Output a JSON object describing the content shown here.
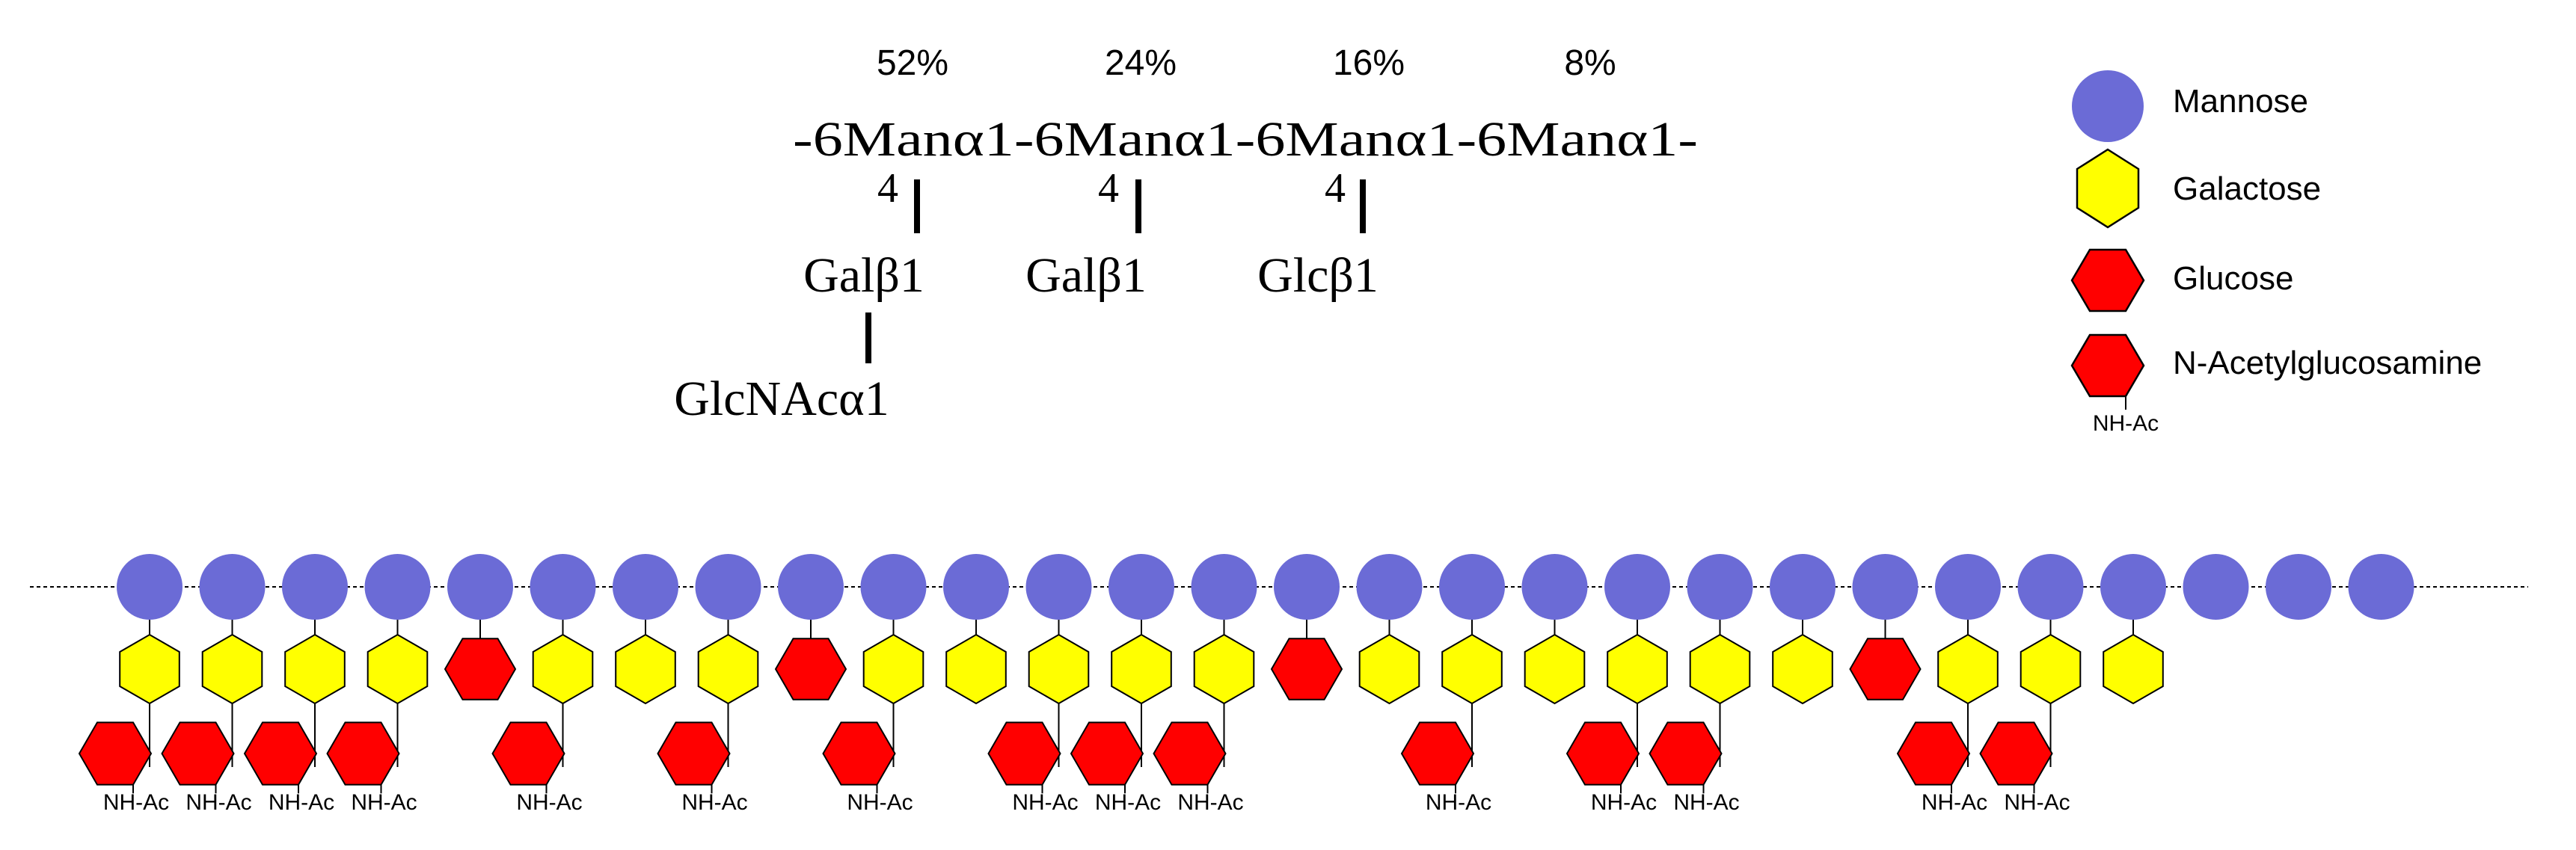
{
  "formula": {
    "percents": [
      "52%",
      "24%",
      "16%",
      "8%"
    ],
    "backbone": "-6Manα1-6Manα1-6Manα1-6Manα1-",
    "linkage_numbers": [
      "4",
      "4",
      "4"
    ],
    "branches": [
      "Galβ1",
      "Galβ1",
      "Glcβ1"
    ],
    "terminal": "GlcNAcα1"
  },
  "legend": {
    "mannose": "Mannose",
    "galactose": "Galactose",
    "glucose": "Glucose",
    "glcnac": "N-Acetylglucosamine",
    "glcnac_tag": "NH-Ac"
  },
  "colors": {
    "mannose": "#6b6bd6",
    "galactose": "#ffff00",
    "glucose": "#ff0000",
    "outline": "#000000",
    "line": "#000000"
  },
  "chain": {
    "mannose_count": 28,
    "side": [
      [
        "gal",
        "glcnac"
      ],
      [
        "gal",
        "glcnac"
      ],
      [
        "gal",
        "glcnac"
      ],
      [
        "gal",
        "glcnac"
      ],
      [
        "glc"
      ],
      [
        "gal",
        "glcnac"
      ],
      [
        "gal"
      ],
      [
        "gal",
        "glcnac"
      ],
      [
        "glc"
      ],
      [
        "gal",
        "glcnac"
      ],
      [
        "gal"
      ],
      [
        "gal",
        "glcnac"
      ],
      [
        "gal",
        "glcnac"
      ],
      [
        "gal",
        "glcnac"
      ],
      [
        "glc"
      ],
      [
        "gal"
      ],
      [
        "gal",
        "glcnac"
      ],
      [
        "gal"
      ],
      [
        "gal",
        "glcnac"
      ],
      [
        "gal",
        "glcnac"
      ],
      [
        "gal"
      ],
      [
        "glc"
      ],
      [
        "gal",
        "glcnac"
      ],
      [
        "gal",
        "glcnac"
      ],
      [
        "gal"
      ],
      [],
      [],
      []
    ],
    "nhac_label": "NH-Ac"
  }
}
